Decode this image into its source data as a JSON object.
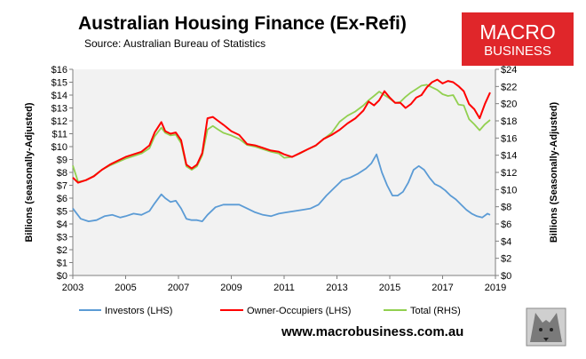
{
  "chart_data": {
    "type": "line",
    "title": "Australian Housing Finance (Ex-Refi)",
    "subtitle": "Source: Australian Bureau of Statistics",
    "ylabel_left": "Billions (seasonally-Adjusted)",
    "ylabel_right": "Billions (Seasonally-Adjusted)",
    "xlim": [
      2003,
      2019
    ],
    "ylim_left": [
      0,
      16
    ],
    "ylim_right": [
      0,
      24
    ],
    "x_ticks": [
      "2003",
      "2005",
      "2007",
      "2009",
      "2011",
      "2013",
      "2015",
      "2017",
      "2019"
    ],
    "y_ticks_left": [
      "$0",
      "$1",
      "$2",
      "$3",
      "$4",
      "$5",
      "$6",
      "$7",
      "$8",
      "$9",
      "$10",
      "$11",
      "$12",
      "$13",
      "$14",
      "$15",
      "$16"
    ],
    "y_ticks_right": [
      "$0",
      "$2",
      "$4",
      "$6",
      "$8",
      "$10",
      "$12",
      "$14",
      "$16",
      "$18",
      "$20",
      "$22",
      "$24"
    ],
    "grid": false,
    "legend_position": "bottom",
    "series": [
      {
        "name": "Investors (LHS)",
        "axis": "left",
        "color": "#5b9bd5",
        "x": [
          2003.0,
          2003.3,
          2003.6,
          2003.9,
          2004.2,
          2004.5,
          2004.8,
          2005.0,
          2005.3,
          2005.6,
          2005.9,
          2006.1,
          2006.35,
          2006.5,
          2006.7,
          2006.9,
          2007.1,
          2007.3,
          2007.5,
          2007.7,
          2007.9,
          2008.1,
          2008.4,
          2008.7,
          2009.0,
          2009.3,
          2009.6,
          2009.9,
          2010.2,
          2010.5,
          2010.8,
          2011.1,
          2011.4,
          2011.7,
          2012.0,
          2012.3,
          2012.6,
          2012.9,
          2013.2,
          2013.5,
          2013.8,
          2014.1,
          2014.3,
          2014.5,
          2014.7,
          2014.9,
          2015.1,
          2015.3,
          2015.5,
          2015.7,
          2015.9,
          2016.1,
          2016.3,
          2016.5,
          2016.7,
          2016.9,
          2017.1,
          2017.3,
          2017.5,
          2017.7,
          2017.9,
          2018.1,
          2018.3,
          2018.5,
          2018.7,
          2018.8
        ],
        "y": [
          5.2,
          4.4,
          4.2,
          4.3,
          4.6,
          4.7,
          4.5,
          4.6,
          4.8,
          4.7,
          5.0,
          5.6,
          6.3,
          6.0,
          5.7,
          5.8,
          5.2,
          4.4,
          4.3,
          4.3,
          4.2,
          4.7,
          5.3,
          5.5,
          5.5,
          5.5,
          5.2,
          4.9,
          4.7,
          4.6,
          4.8,
          4.9,
          5.0,
          5.1,
          5.2,
          5.5,
          6.2,
          6.8,
          7.4,
          7.6,
          7.9,
          8.3,
          8.7,
          9.4,
          8.0,
          7.0,
          6.2,
          6.2,
          6.5,
          7.2,
          8.2,
          8.5,
          8.2,
          7.6,
          7.1,
          6.9,
          6.6,
          6.2,
          5.9,
          5.5,
          5.1,
          4.8,
          4.6,
          4.5,
          4.8,
          4.7
        ]
      },
      {
        "name": "Owner-Occupiers (LHS)",
        "axis": "left",
        "color": "#ff0000",
        "x": [
          2003.0,
          2003.2,
          2003.5,
          2003.8,
          2004.1,
          2004.4,
          2004.7,
          2005.0,
          2005.3,
          2005.6,
          2005.9,
          2006.1,
          2006.35,
          2006.5,
          2006.7,
          2006.9,
          2007.1,
          2007.3,
          2007.5,
          2007.7,
          2007.9,
          2008.1,
          2008.3,
          2008.5,
          2008.7,
          2009.0,
          2009.3,
          2009.6,
          2009.9,
          2010.2,
          2010.5,
          2010.8,
          2011.0,
          2011.3,
          2011.6,
          2011.9,
          2012.2,
          2012.5,
          2012.8,
          2013.1,
          2013.4,
          2013.7,
          2014.0,
          2014.2,
          2014.4,
          2014.6,
          2014.8,
          2015.0,
          2015.2,
          2015.4,
          2015.6,
          2015.8,
          2016.0,
          2016.2,
          2016.4,
          2016.6,
          2016.8,
          2017.0,
          2017.2,
          2017.4,
          2017.6,
          2017.8,
          2018.0,
          2018.2,
          2018.4,
          2018.6,
          2018.8
        ],
        "y": [
          7.6,
          7.2,
          7.4,
          7.7,
          8.2,
          8.6,
          8.9,
          9.2,
          9.4,
          9.6,
          10.1,
          11.1,
          11.9,
          11.2,
          11.0,
          11.1,
          10.5,
          8.6,
          8.3,
          8.6,
          9.5,
          12.2,
          12.3,
          12.0,
          11.7,
          11.2,
          10.9,
          10.2,
          10.1,
          9.9,
          9.7,
          9.6,
          9.4,
          9.2,
          9.5,
          9.8,
          10.1,
          10.6,
          10.9,
          11.3,
          11.8,
          12.2,
          12.8,
          13.5,
          13.2,
          13.6,
          14.3,
          13.8,
          13.4,
          13.4,
          13.0,
          13.3,
          13.8,
          14.0,
          14.6,
          15.0,
          15.2,
          14.9,
          15.1,
          15.0,
          14.7,
          14.3,
          13.3,
          12.9,
          12.2,
          13.3,
          14.2
        ]
      },
      {
        "name": "Total (RHS)",
        "axis": "right",
        "color": "#92d050",
        "x": [
          2003.0,
          2003.2,
          2003.5,
          2003.8,
          2004.1,
          2004.4,
          2004.7,
          2005.0,
          2005.3,
          2005.6,
          2005.9,
          2006.1,
          2006.35,
          2006.5,
          2006.7,
          2006.9,
          2007.1,
          2007.3,
          2007.5,
          2007.7,
          2007.9,
          2008.1,
          2008.3,
          2008.5,
          2008.7,
          2009.0,
          2009.3,
          2009.6,
          2009.9,
          2010.2,
          2010.5,
          2010.8,
          2011.0,
          2011.3,
          2011.6,
          2011.9,
          2012.2,
          2012.5,
          2012.8,
          2013.1,
          2013.4,
          2013.7,
          2014.0,
          2014.2,
          2014.4,
          2014.6,
          2014.8,
          2015.0,
          2015.2,
          2015.4,
          2015.6,
          2015.8,
          2016.0,
          2016.2,
          2016.4,
          2016.6,
          2016.8,
          2017.0,
          2017.2,
          2017.4,
          2017.6,
          2017.8,
          2018.0,
          2018.2,
          2018.4,
          2018.6,
          2018.8
        ],
        "y": [
          12.8,
          10.9,
          11.1,
          11.6,
          12.3,
          12.8,
          13.2,
          13.6,
          13.9,
          14.2,
          14.8,
          16.2,
          17.2,
          16.6,
          16.3,
          16.4,
          15.4,
          12.7,
          12.3,
          12.7,
          14.0,
          17.0,
          17.4,
          17.0,
          16.6,
          16.3,
          15.9,
          15.2,
          15.0,
          14.7,
          14.4,
          14.2,
          13.7,
          13.8,
          14.2,
          14.7,
          15.1,
          15.9,
          16.6,
          17.9,
          18.6,
          19.1,
          19.8,
          20.4,
          20.9,
          21.4,
          21.0,
          20.6,
          20.1,
          20.2,
          20.8,
          21.3,
          21.7,
          22.1,
          22.2,
          21.9,
          21.6,
          21.1,
          20.9,
          21.0,
          19.9,
          19.8,
          18.2,
          17.6,
          16.9,
          17.6,
          18.1
        ]
      }
    ]
  },
  "url": "www.macrobusiness.com.au",
  "logo": {
    "line1": "MACRO",
    "line2": "BUSINESS",
    "color": "#e0262a"
  },
  "badge_icon": "wolf-icon"
}
